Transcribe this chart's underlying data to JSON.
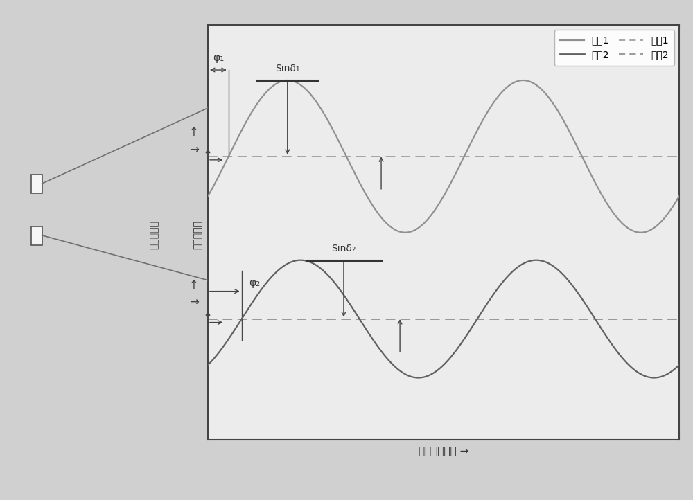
{
  "bg_color": "#d0d0d0",
  "box_bg": "#ececec",
  "curve1_color": "#909090",
  "curve2_color": "#606060",
  "dashed1_color": "#909090",
  "dashed2_color": "#808080",
  "arrow_color": "#444444",
  "line_color": "#333333",
  "xlabel": "偏振片旋转角 →",
  "ylabel": "规一化光强",
  "legend_pixel1": "像紹1",
  "legend_pixel2": "像紹2",
  "legend_depol1": "去偏1",
  "legend_depol2": "去偏2",
  "phi1_label": "φ₁",
  "phi2_label": "φ₂",
  "sindelta1_label": "Sinδ₁",
  "sindelta2_label": "Sinδ₂",
  "c1_amp": 0.22,
  "c1_off": 0.72,
  "c1_phase": 0.55,
  "c2_amp": 0.17,
  "c2_off": 0.25,
  "c2_phase": 0.9,
  "d1_level": 0.72,
  "d2_level": 0.25,
  "ymin": -0.1,
  "ymax": 1.1,
  "xmax": 12.566
}
